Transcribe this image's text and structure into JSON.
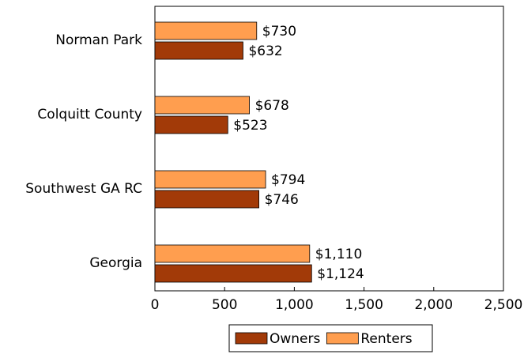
{
  "chart_data": {
    "type": "hbar",
    "categories": [
      "Norman Park",
      "Colquitt County",
      "Southwest GA RC",
      "Georgia"
    ],
    "series": [
      {
        "name": "Owners",
        "color": "#a23a08",
        "values": [
          632,
          523,
          746,
          1124
        ],
        "value_labels": [
          "$632",
          "$523",
          "$746",
          "$1,124"
        ]
      },
      {
        "name": "Renters",
        "color": "#ff9e4f",
        "values": [
          730,
          678,
          794,
          1110
        ],
        "value_labels": [
          "$730",
          "$678",
          "$794",
          "$1,110"
        ]
      }
    ],
    "xlim": [
      0,
      2500
    ],
    "xticks": [
      0,
      500,
      {
        "value": 1000,
        "label": "1,000"
      },
      {
        "value": 1500,
        "label": "1,500"
      },
      {
        "value": 2000,
        "label": "2,000"
      },
      {
        "value": 2500,
        "label": "2,500"
      }
    ],
    "grid": false,
    "legend": "bottom"
  }
}
